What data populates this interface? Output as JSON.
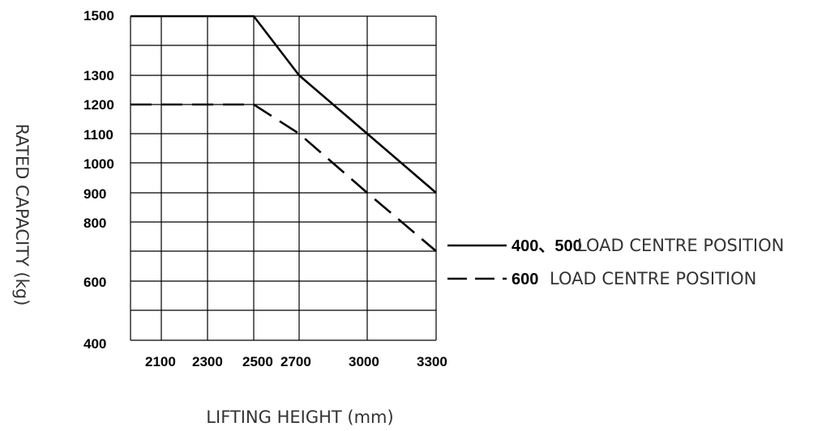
{
  "chart_data": {
    "type": "line",
    "xlabel": "LIFTING HEIGHT (mm)",
    "ylabel": "RATED  CAPACITY (kg)",
    "x_ticks": [
      "2100",
      "2300",
      "2500",
      "2700",
      "3000",
      "3300"
    ],
    "y_ticks": [
      "1500",
      "1300",
      "1200",
      "1100",
      "1000",
      "900",
      "800",
      "600",
      "400"
    ],
    "grid": true,
    "legend_placement": "right",
    "series": [
      {
        "name_num": "400、500",
        "name_text": "LOAD CENTRE POSITION",
        "style": "solid",
        "x": [
          1900,
          2500,
          2700,
          3000,
          3300
        ],
        "y": [
          1500,
          1500,
          1300,
          1100,
          900
        ]
      },
      {
        "name_num": "600",
        "name_text": "LOAD CENTRE POSITION",
        "style": "dashed",
        "x": [
          1900,
          2500,
          2700,
          3000,
          3300
        ],
        "y": [
          1200,
          1200,
          1100,
          900,
          700
        ]
      }
    ]
  }
}
